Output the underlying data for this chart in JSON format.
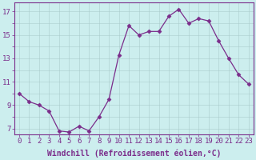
{
  "x": [
    0,
    1,
    2,
    3,
    4,
    5,
    6,
    7,
    8,
    9,
    10,
    11,
    12,
    13,
    14,
    15,
    16,
    17,
    18,
    19,
    20,
    21,
    22,
    23
  ],
  "y": [
    10.0,
    9.3,
    9.0,
    8.5,
    6.8,
    6.7,
    7.2,
    6.8,
    8.0,
    9.5,
    13.3,
    15.8,
    15.0,
    15.3,
    15.3,
    16.6,
    17.2,
    16.0,
    16.4,
    16.2,
    14.5,
    13.0,
    11.6,
    10.8
  ],
  "line_color": "#7b2d8b",
  "marker": "D",
  "marker_size": 2.5,
  "bg_color": "#cceeee",
  "grid_color": "#aacccc",
  "xlabel": "Windchill (Refroidissement éolien,°C)",
  "yticks": [
    7,
    9,
    11,
    13,
    15,
    17
  ],
  "xlim": [
    -0.5,
    23.5
  ],
  "ylim": [
    6.5,
    17.8
  ],
  "xlabel_color": "#7b2d8b",
  "tick_color": "#7b2d8b",
  "xlabel_fontsize": 7.0,
  "tick_fontsize": 6.5
}
